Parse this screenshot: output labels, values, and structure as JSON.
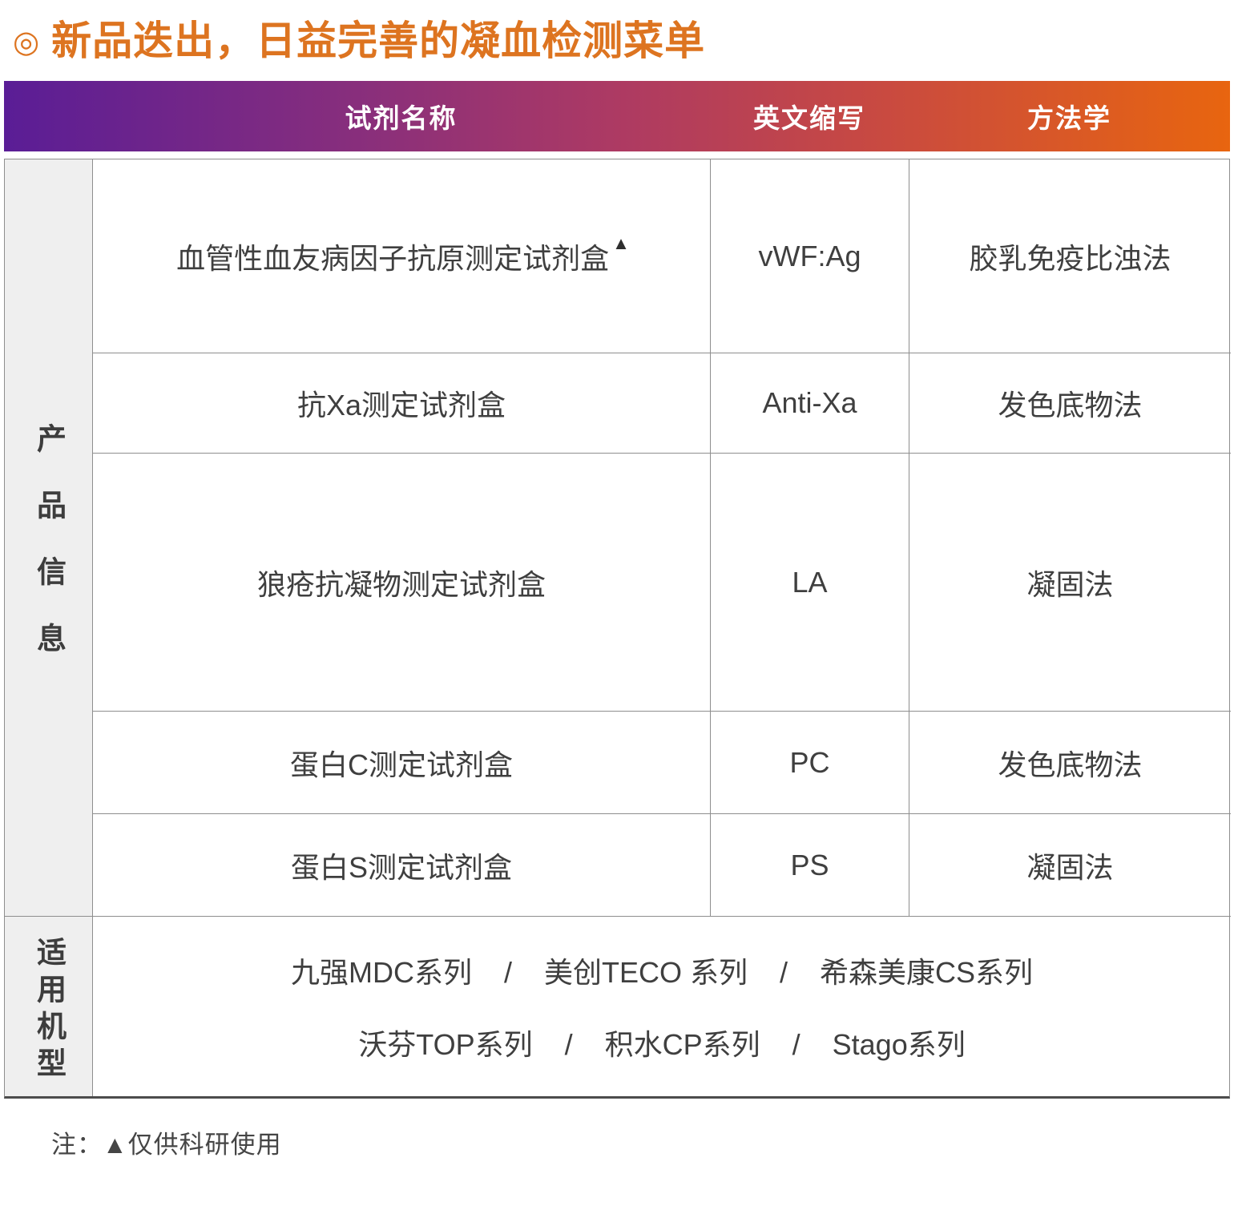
{
  "title": {
    "bullet": "◎",
    "text": "新品迭出，日益完善的凝血检测菜单",
    "color": "#dd7420"
  },
  "table": {
    "headers": [
      "试剂名称",
      "英文缩写",
      "方法学"
    ],
    "header_gradient": [
      "#5a1d96",
      "#ad3a63",
      "#c94a40",
      "#e8650f"
    ],
    "left_labels": {
      "product_info": "产品信息",
      "models": "适用机型"
    },
    "rows": [
      {
        "name": "血管性血友病因子抗原测定试剂盒",
        "sup": "▲",
        "abbr": "vWF:Ag",
        "method": "胶乳免疫比浊法"
      },
      {
        "name": "抗Xa测定试剂盒",
        "sup": "",
        "abbr": "Anti-Xa",
        "method": "发色底物法"
      },
      {
        "name": "狼疮抗凝物测定试剂盒",
        "sup": "",
        "abbr": "LA",
        "method": "凝固法"
      },
      {
        "name": "蛋白C测定试剂盒",
        "sup": "",
        "abbr": "PC",
        "method": "发色底物法"
      },
      {
        "name": "蛋白S测定试剂盒",
        "sup": "",
        "abbr": "PS",
        "method": "凝固法"
      }
    ],
    "models_lines": [
      "九强MDC系列    /    美创TECO 系列    /    希森美康CS系列",
      "沃芬TOP系列    /    积水CP系列    /    Stago系列"
    ]
  },
  "note": "注：▲仅供科研使用"
}
